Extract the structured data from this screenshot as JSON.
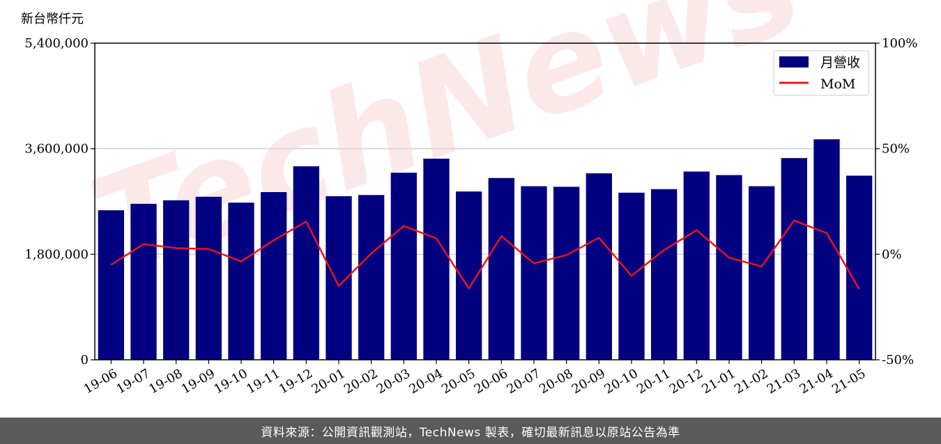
{
  "chart_data": {
    "type": "bar",
    "y_unit_label": "新台幣仟元",
    "categories": [
      "19-06",
      "19-07",
      "19-08",
      "19-09",
      "19-10",
      "19-11",
      "19-12",
      "20-01",
      "20-02",
      "20-03",
      "20-04",
      "20-05",
      "20-06",
      "20-07",
      "20-08",
      "20-09",
      "20-10",
      "20-11",
      "20-12",
      "21-01",
      "21-02",
      "21-03",
      "21-04",
      "21-05"
    ],
    "series": [
      {
        "name": "月營收",
        "type": "bar",
        "axis": "left",
        "color": "#000080",
        "values": [
          2550000,
          2660000,
          2720000,
          2780000,
          2680000,
          2860000,
          3300000,
          2790000,
          2810000,
          3190000,
          3430000,
          2870000,
          3100000,
          2960000,
          2950000,
          3180000,
          2850000,
          2910000,
          3210000,
          3150000,
          2960000,
          3440000,
          3760000,
          3140000
        ]
      },
      {
        "name": "MoM",
        "type": "line",
        "axis": "right",
        "color": "#e8141b",
        "values": [
          -5.0,
          4.8,
          2.9,
          2.5,
          -3.4,
          6.6,
          15.5,
          -15.0,
          0.4,
          13.4,
          7.5,
          -16.2,
          8.6,
          -4.3,
          -0.4,
          7.8,
          -10.2,
          2.0,
          11.4,
          -1.6,
          -5.8,
          16.0,
          10.0,
          -16.5
        ]
      }
    ],
    "ylim_left": [
      0,
      5400000
    ],
    "ylim_right": [
      -50,
      100
    ],
    "left_ticks": [
      0,
      1800000,
      3600000,
      5400000
    ],
    "left_tick_labels": [
      "0",
      "1,800,000",
      "3,600,000",
      "5,400,000"
    ],
    "right_ticks": [
      -50,
      0,
      50,
      100
    ],
    "right_tick_labels": [
      "-50%",
      "0%",
      "50%",
      "100%"
    ],
    "grid": "horizontal",
    "legend_position": "top-right",
    "watermark": "TechNews"
  },
  "footer": {
    "source_text": "資料來源：公開資訊觀測站，TechNews 製表，確切最新訊息以原站公告為準"
  }
}
